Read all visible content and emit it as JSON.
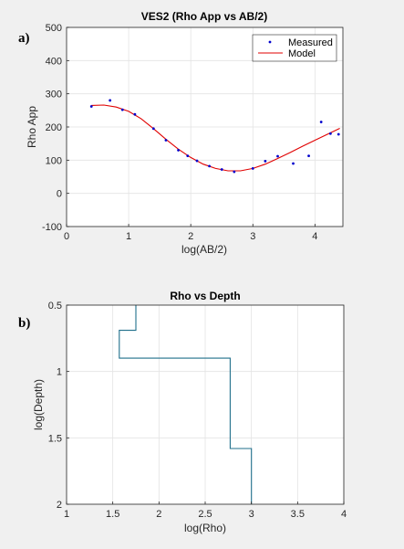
{
  "chart_data": [
    {
      "panel_label": "a)",
      "type": "scatter+line",
      "title": "VES2 (Rho App vs AB/2)",
      "xlabel": "log(AB/2)",
      "ylabel": "Rho App",
      "xlim": [
        0,
        4.45
      ],
      "ylim": [
        -100,
        500
      ],
      "xticks": [
        0,
        1,
        2,
        3,
        4
      ],
      "yticks": [
        -100,
        0,
        100,
        200,
        300,
        400,
        500
      ],
      "xtick_labels": [
        "0",
        "1",
        "2",
        "3",
        "4"
      ],
      "ytick_labels": [
        "-100",
        "0",
        "100",
        "200",
        "300",
        "400",
        "500"
      ],
      "grid": true,
      "legend_placement": "top-right",
      "series": [
        {
          "name": "Measured",
          "style": "points",
          "color": "#0000cc",
          "x": [
            0.4,
            0.7,
            0.9,
            1.1,
            1.4,
            1.6,
            1.8,
            1.95,
            2.1,
            2.3,
            2.5,
            2.7,
            3.0,
            3.2,
            3.4,
            3.65,
            3.9,
            4.1,
            4.25,
            4.38
          ],
          "y": [
            262,
            280,
            252,
            238,
            195,
            160,
            130,
            113,
            98,
            82,
            72,
            65,
            75,
            97,
            112,
            90,
            113,
            215,
            180,
            178
          ]
        },
        {
          "name": "Model",
          "style": "line",
          "color": "#e00000",
          "x": [
            0.4,
            0.6,
            0.8,
            1.0,
            1.2,
            1.4,
            1.6,
            1.8,
            2.0,
            2.2,
            2.4,
            2.6,
            2.8,
            3.0,
            3.2,
            3.4,
            3.6,
            3.8,
            4.0,
            4.2,
            4.4
          ],
          "y": [
            265,
            266,
            260,
            247,
            225,
            195,
            163,
            133,
            108,
            88,
            75,
            68,
            68,
            75,
            88,
            105,
            123,
            142,
            160,
            178,
            196
          ]
        }
      ]
    },
    {
      "panel_label": "b)",
      "type": "line",
      "title": "Rho vs Depth",
      "xlabel": "log(Rho)",
      "ylabel": "log(Depth)",
      "xlim": [
        1,
        4
      ],
      "ylim": [
        0.5,
        2
      ],
      "y_reversed": true,
      "xticks": [
        1,
        1.5,
        2,
        2.5,
        3,
        3.5,
        4
      ],
      "yticks": [
        0.5,
        1,
        1.5,
        2
      ],
      "xtick_labels": [
        "1",
        "1.5",
        "2",
        "2.5",
        "3",
        "3.5",
        "4"
      ],
      "ytick_labels": [
        "0.5",
        "1",
        "1.5",
        "2"
      ],
      "grid": true,
      "series": [
        {
          "style": "step",
          "color": "#1f6f8b",
          "x": [
            1.75,
            1.75,
            1.57,
            1.57,
            2.77,
            2.77,
            3.0,
            3.0
          ],
          "y": [
            0.5,
            0.69,
            0.69,
            0.9,
            0.9,
            1.58,
            1.58,
            2.0
          ]
        }
      ]
    }
  ]
}
